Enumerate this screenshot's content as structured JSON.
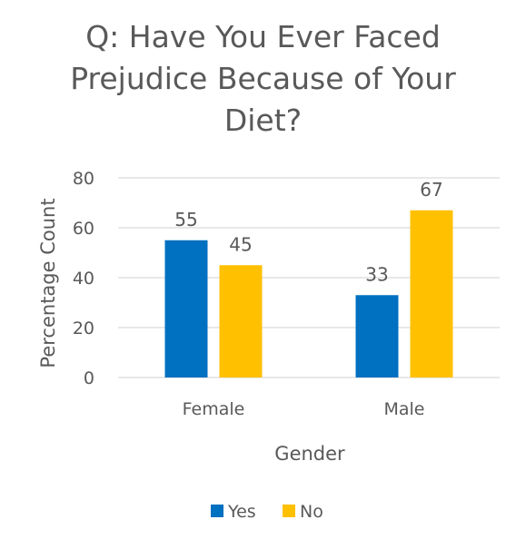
{
  "chart_data": {
    "type": "bar",
    "title": "Q: Have You Ever Faced Prejudice Because of Your Diet?",
    "xlabel": "Gender",
    "ylabel": "Percentage  Count",
    "categories": [
      "Female",
      "Male"
    ],
    "series": [
      {
        "name": "Yes",
        "values": [
          55,
          33
        ],
        "color": "#0070C0"
      },
      {
        "name": "No",
        "values": [
          45,
          67
        ],
        "color": "#FFC000"
      }
    ],
    "ylim": [
      0,
      80
    ],
    "yticks": [
      "0",
      "20",
      "40",
      "60",
      "80"
    ],
    "ytick_values": [
      0,
      20,
      40,
      60,
      80
    ],
    "grid": true,
    "legend_position": "bottom"
  },
  "colors": {
    "text": "#595959",
    "grid": "#D9D9D9"
  }
}
